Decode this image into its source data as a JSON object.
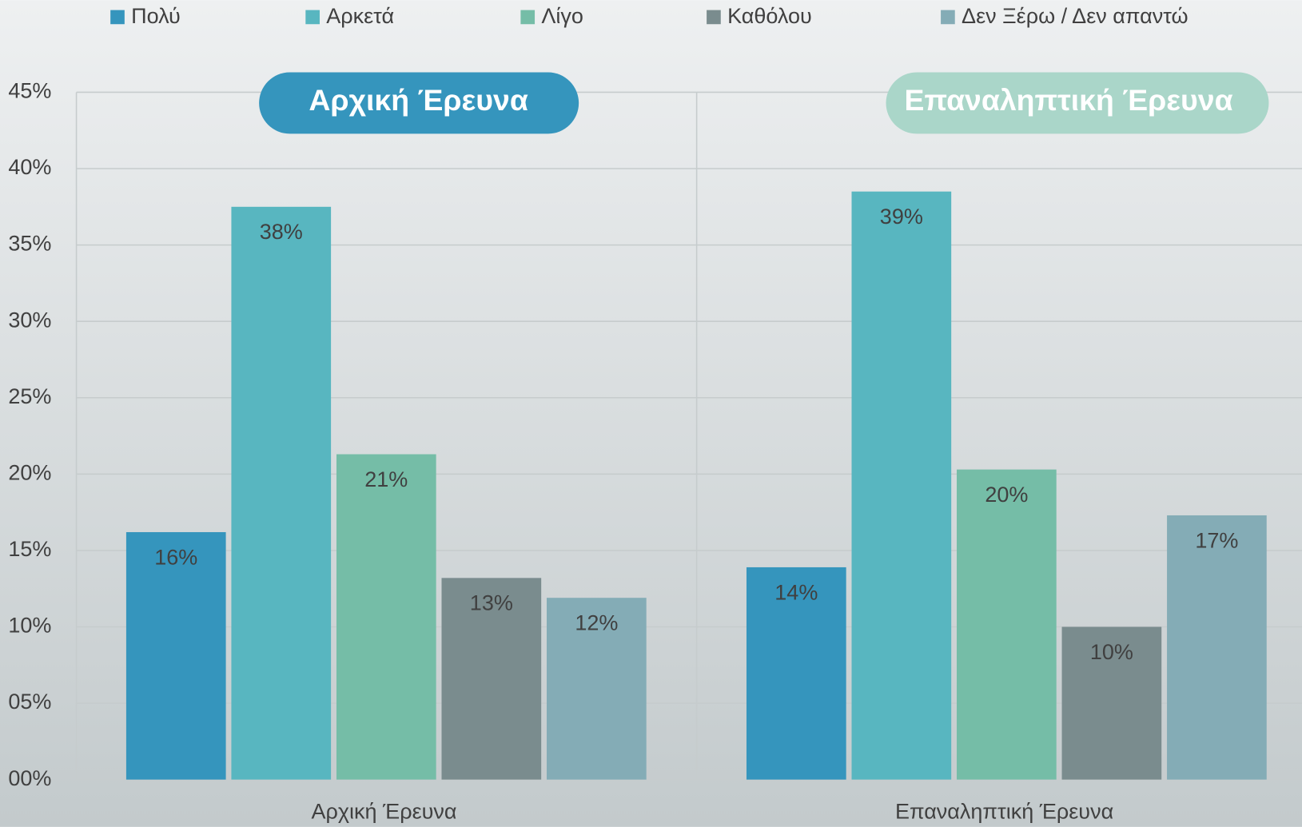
{
  "chart_data": {
    "type": "bar",
    "categories": [
      "Αρχική Έρευνα",
      "Επαναληπτική Έρευνα"
    ],
    "series": [
      {
        "name": "Πολύ",
        "color": "#3595bd",
        "values": [
          16.2,
          13.9
        ],
        "value_labels": [
          "16%",
          "14%"
        ]
      },
      {
        "name": "Αρκετά",
        "color": "#58b6c0",
        "values": [
          37.5,
          38.5
        ],
        "value_labels": [
          "38%",
          "39%"
        ]
      },
      {
        "name": "Λίγο",
        "color": "#75bda7",
        "values": [
          21.3,
          20.3
        ],
        "value_labels": [
          "21%",
          "20%"
        ]
      },
      {
        "name": "Καθόλου",
        "color": "#7a8c8e",
        "values": [
          13.2,
          10.0
        ],
        "value_labels": [
          "13%",
          "10%"
        ]
      },
      {
        "name": "Δεν Ξέρω / Δεν απαντώ",
        "color": "#84acb6",
        "values": [
          11.9,
          17.3
        ],
        "value_labels": [
          "12%",
          "17%"
        ]
      }
    ],
    "ylim": [
      0,
      45
    ],
    "yticks": [
      {
        "value": 0,
        "label": "00%"
      },
      {
        "value": 5,
        "label": "05%"
      },
      {
        "value": 10,
        "label": "10%"
      },
      {
        "value": 15,
        "label": "15%"
      },
      {
        "value": 20,
        "label": "20%"
      },
      {
        "value": 25,
        "label": "25%"
      },
      {
        "value": 30,
        "label": "30%"
      },
      {
        "value": 35,
        "label": "35%"
      },
      {
        "value": 40,
        "label": "40%"
      },
      {
        "value": 45,
        "label": "45%"
      }
    ],
    "grid": true
  }
}
